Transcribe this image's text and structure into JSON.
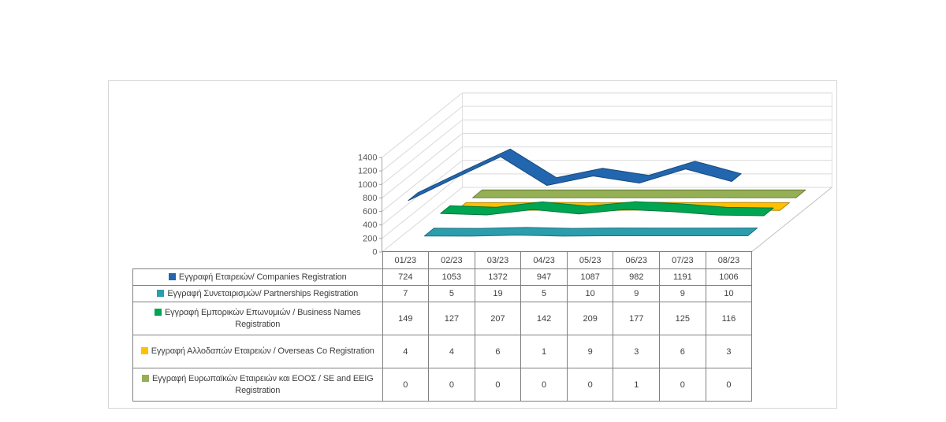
{
  "panel": {
    "description": "Monthly registrations 3D line chart with data table"
  },
  "chart_data": {
    "type": "line",
    "projection": "3d-ribbon",
    "categories": [
      "01/23",
      "02/23",
      "03/23",
      "04/23",
      "05/23",
      "06/23",
      "07/23",
      "08/23"
    ],
    "series": [
      {
        "name": "Εγγραφή Εταιρειών/ Companies Registration",
        "color": "#2166AE",
        "values": [
          724,
          1053,
          1372,
          947,
          1087,
          982,
          1191,
          1006
        ]
      },
      {
        "name": "Εγγραφή Συνεταιρισμών/ Partnerships Registration",
        "color": "#2B9DAD",
        "values": [
          7,
          5,
          19,
          5,
          10,
          9,
          9,
          10
        ]
      },
      {
        "name": "Εγγραφή Εμπορικών Επωνυμιών / Business Names Registration",
        "color": "#00A551",
        "values": [
          149,
          127,
          207,
          142,
          209,
          177,
          125,
          116
        ]
      },
      {
        "name": "Εγγραφή Αλλοδαπών Εταιρειών / Overseas Co Registration",
        "color": "#FFC000",
        "values": [
          4,
          4,
          6,
          1,
          9,
          3,
          6,
          3
        ]
      },
      {
        "name": "Εγγραφή Ευρωπαϊκών Εταιρειών και ΕΟΟΣ / SE and EEIG Registration",
        "color": "#94AF54",
        "values": [
          0,
          0,
          0,
          0,
          0,
          1,
          0,
          0
        ]
      }
    ],
    "title": "",
    "xlabel": "",
    "ylabel": "",
    "ylim": [
      0,
      1400
    ],
    "ytick_step": 200,
    "grid": true,
    "legend_position": "table-left-column"
  }
}
